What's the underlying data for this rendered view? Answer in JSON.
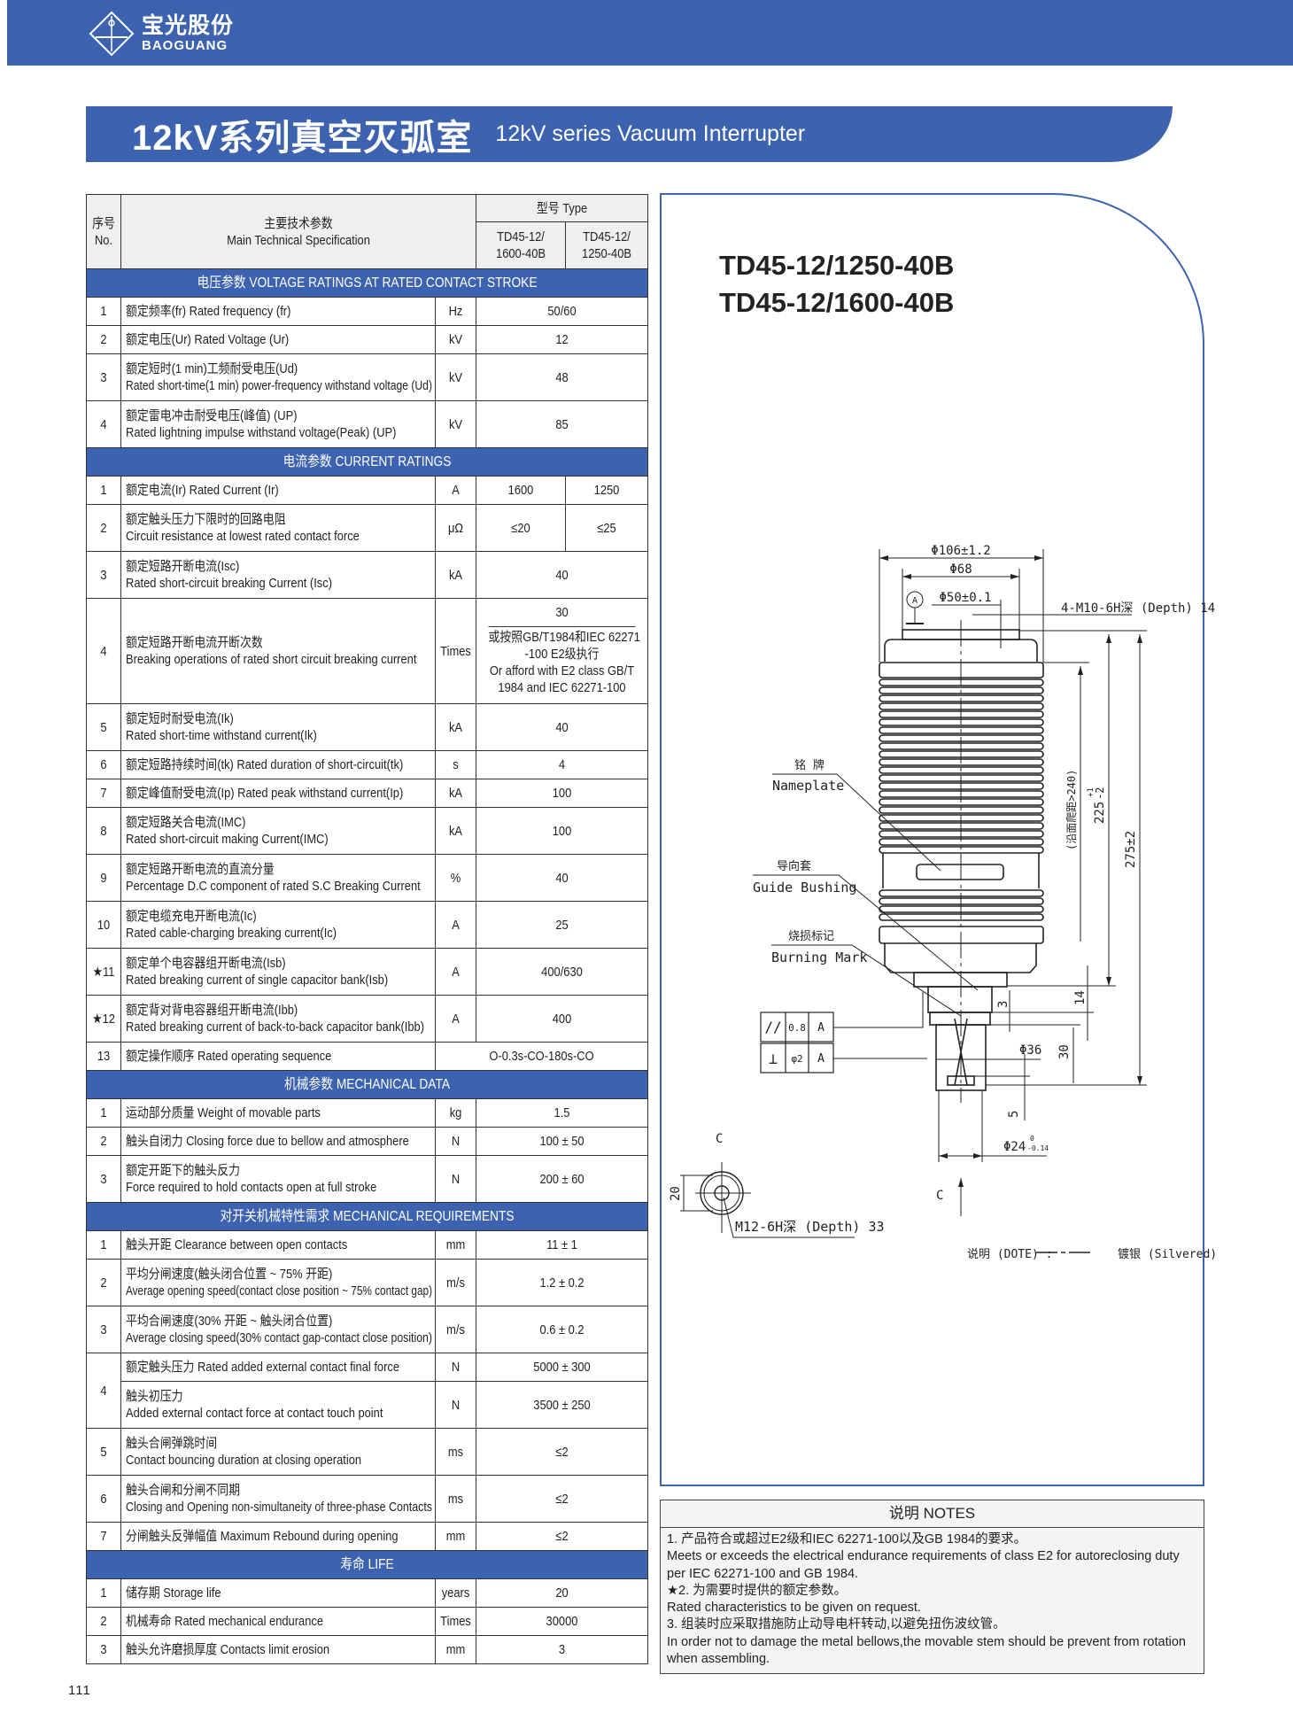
{
  "brand": {
    "logo_cn": "宝光股份",
    "logo_en": "BAOGUANG",
    "color": "#3d63b0"
  },
  "banner": {
    "title_cn": "12kV系列真空灭弧室",
    "title_en": "12kV series Vacuum Interrupter"
  },
  "table_header": {
    "no_cn": "序号",
    "no_en": "No.",
    "spec_cn": "主要技术参数",
    "spec_en": "Main Technical Specification",
    "type": "型号 Type",
    "model1": [
      "TD45-12/",
      "1600-40B"
    ],
    "model2": [
      "TD45-12/",
      "1250-40B"
    ]
  },
  "sections": [
    {
      "title": "电压参数   VOLTAGE RATINGS AT RATED CONTACT STROKE",
      "rows": [
        {
          "no": "1",
          "lines": [
            "额定频率(fr) Rated frequency (fr)"
          ],
          "unit": "Hz",
          "value": "50/60"
        },
        {
          "no": "2",
          "lines": [
            "额定电压(Ur) Rated Voltage (Ur)"
          ],
          "unit": "kV",
          "value": "12"
        },
        {
          "no": "3",
          "lines": [
            "额定短时(1 min)工频耐受电压(Ud)",
            "Rated short-time(1 min) power-frequency withstand voltage (Ud)"
          ],
          "unit": "kV",
          "value": "48"
        },
        {
          "no": "4",
          "lines": [
            "额定雷电冲击耐受电压(峰值) (UP)",
            "Rated lightning impulse withstand voltage(Peak) (UP)"
          ],
          "unit": "kV",
          "value": "85"
        }
      ]
    },
    {
      "title": "电流参数  CURRENT RATINGS",
      "rows": [
        {
          "no": "1",
          "lines": [
            "额定电流(Ir) Rated Current (Ir)"
          ],
          "unit": "A",
          "values": [
            "1600",
            "1250"
          ]
        },
        {
          "no": "2",
          "lines": [
            "额定触头压力下限时的回路电阻",
            "Circuit resistance at lowest rated contact force"
          ],
          "unit": "μΩ",
          "values": [
            "≤20",
            "≤25"
          ]
        },
        {
          "no": "3",
          "lines": [
            "额定短路开断电流(Isc)",
            "Rated short-circuit breaking Current (Isc)"
          ],
          "unit": "kA",
          "value": "40"
        },
        {
          "no": "4",
          "lines": [
            "额定短路开断电流开断次数",
            "Breaking operations of rated short circuit breaking current"
          ],
          "unit": "Times",
          "value": "30",
          "alt_lines": [
            "或按照GB/T1984和IEC 62271",
            "-100 E2级执行",
            "Or afford with E2 class GB/T",
            "1984 and IEC 62271-100"
          ]
        },
        {
          "no": "5",
          "lines": [
            "额定短时耐受电流(Ik)",
            "Rated short-time withstand current(Ik)"
          ],
          "unit": "kA",
          "value": "40"
        },
        {
          "no": "6",
          "lines": [
            "额定短路持续时间(tk) Rated duration of short-circuit(tk)"
          ],
          "unit": "s",
          "value": "4"
        },
        {
          "no": "7",
          "lines": [
            "额定峰值耐受电流(Ip) Rated peak withstand current(Ip)"
          ],
          "unit": "kA",
          "value": "100"
        },
        {
          "no": "8",
          "lines": [
            "额定短路关合电流(IMC)",
            "Rated short-circuit making Current(IMC)"
          ],
          "unit": "kA",
          "value": "100"
        },
        {
          "no": "9",
          "lines": [
            "额定短路开断电流的直流分量",
            "Percentage D.C component of rated S.C Breaking Current"
          ],
          "unit": "%",
          "value": "40"
        },
        {
          "no": "10",
          "lines": [
            "额定电缆充电开断电流(Ic)",
            "Rated cable-charging breaking current(Ic)"
          ],
          "unit": "A",
          "value": "25"
        },
        {
          "no": "★11",
          "lines": [
            "额定单个电容器组开断电流(Isb)",
            "Rated breaking current of single capacitor bank(Isb)"
          ],
          "unit": "A",
          "value": "400/630"
        },
        {
          "no": "★12",
          "lines": [
            "额定背对背电容器组开断电流(Ibb)",
            "Rated breaking current of back-to-back capacitor bank(Ibb)"
          ],
          "unit": "A",
          "value": "400"
        },
        {
          "no": "13",
          "lines": [
            "额定操作顺序 Rated operating sequence"
          ],
          "value": "O-0.3s-CO-180s-CO"
        }
      ]
    },
    {
      "title": "机械参数  MECHANICAL DATA",
      "rows": [
        {
          "no": "1",
          "lines": [
            "运动部分质量 Weight of movable parts"
          ],
          "unit": "kg",
          "value": "1.5"
        },
        {
          "no": "2",
          "lines": [
            "触头自闭力 Closing force due to bellow and atmosphere"
          ],
          "unit": "N",
          "value": "100 ± 50"
        },
        {
          "no": "3",
          "lines": [
            "额定开距下的触头反力",
            "Force required to hold contacts open at full stroke"
          ],
          "unit": "N",
          "value": "200 ± 60"
        }
      ]
    },
    {
      "title": "对开关机械特性需求  MECHANICAL REQUIREMENTS",
      "rows": [
        {
          "no": "1",
          "lines": [
            "触头开距 Clearance between open contacts"
          ],
          "unit": "mm",
          "value": "11 ± 1"
        },
        {
          "no": "2",
          "lines": [
            "平均分闸速度(触头闭合位置 ~ 75% 开距)",
            "Average opening speed(contact close position ~ 75% contact gap)"
          ],
          "unit": "m/s",
          "value": "1.2 ± 0.2"
        },
        {
          "no": "3",
          "lines": [
            "平均合闸速度(30% 开距 ~ 触头闭合位置)",
            "Average closing speed(30% contact gap-contact close position)"
          ],
          "unit": "m/s",
          "value": "0.6 ± 0.2"
        },
        {
          "no": "4",
          "subrows": [
            {
              "lines": [
                "额定触头压力 Rated added external contact final force"
              ],
              "unit": "N",
              "value": "5000 ± 300"
            },
            {
              "lines": [
                "触头初压力",
                "Added external contact force at contact touch point"
              ],
              "unit": "N",
              "value": "3500 ± 250"
            }
          ]
        },
        {
          "no": "5",
          "lines": [
            "触头合闸弹跳时间",
            "Contact bouncing duration at closing operation"
          ],
          "unit": "ms",
          "value": "≤2"
        },
        {
          "no": "6",
          "lines": [
            "触头合闸和分闸不同期",
            "Closing and Opening non-simultaneity of three-phase Contacts"
          ],
          "unit": "ms",
          "value": "≤2"
        },
        {
          "no": "7",
          "lines": [
            "分闸触头反弹幅值 Maximum Rebound during opening"
          ],
          "unit": "mm",
          "value": "≤2"
        }
      ]
    },
    {
      "title": "寿命  LIFE",
      "rows": [
        {
          "no": "1",
          "lines": [
            "储存期 Storage life"
          ],
          "unit": "years",
          "value": "20"
        },
        {
          "no": "2",
          "lines": [
            "机械寿命 Rated mechanical endurance"
          ],
          "unit": "Times",
          "value": "30000"
        },
        {
          "no": "3",
          "lines": [
            "触头允许磨损厚度 Contacts limit erosion"
          ],
          "unit": "mm",
          "value": "3"
        }
      ]
    }
  ],
  "drawing": {
    "models": [
      "TD45-12/1250-40B",
      "TD45-12/1600-40B"
    ],
    "dims": {
      "d_outer": "Φ106±1.2",
      "d_68": "Φ68",
      "d_50": "Φ50±0.1",
      "datum": "A",
      "thread_top": "4-M10-6H深 (Depth) 14",
      "creepage": "(沿面爬距>240)",
      "h225": "225",
      "h225_tol_up": "+1",
      "h225_tol_dn": "-2",
      "h275": "275±2",
      "d36": "Φ36",
      "d24": "Φ24",
      "d24_tol_up": "0",
      "d24_tol_dn": "-0.14",
      "dim3": "3",
      "dim14": "14",
      "dim30": "30",
      "dim5": "5",
      "dim20": "20",
      "thread_bottom": "M12-6H深 (Depth) 33",
      "section_mark": "C"
    },
    "labels": {
      "nameplate_cn": "铭 牌",
      "nameplate_en": "Nameplate",
      "guide_cn": "导向套",
      "guide_en": "Guide Bushing",
      "burning_cn": "烧损标记",
      "burning_en": "Burning Mark"
    },
    "tolerance": [
      {
        "symbol": "//",
        "value": "0.8",
        "datum": "A"
      },
      {
        "symbol": "⊥",
        "value": "φ2",
        "datum": "A"
      }
    ],
    "legend": {
      "note": "说明 (DOTE) :",
      "silvered": "镀银 (Silvered)"
    }
  },
  "notes": {
    "title": "说明   NOTES",
    "lines": [
      "1. 产品符合或超过E2级和IEC 62271-100以及GB 1984的要求。",
      "Meets or exceeds the electrical endurance requirements of class E2 for autoreclosing duty per IEC 62271-100 and GB 1984.",
      "★2. 为需要时提供的额定参数。",
      "Rated characteristics to be given on request.",
      "3. 组装时应采取措施防止动导电杆转动,以避免扭伤波纹管。",
      "In order not to damage the metal bellows,the movable stem should be prevent from rotation when assembling."
    ]
  },
  "page_number": "111"
}
